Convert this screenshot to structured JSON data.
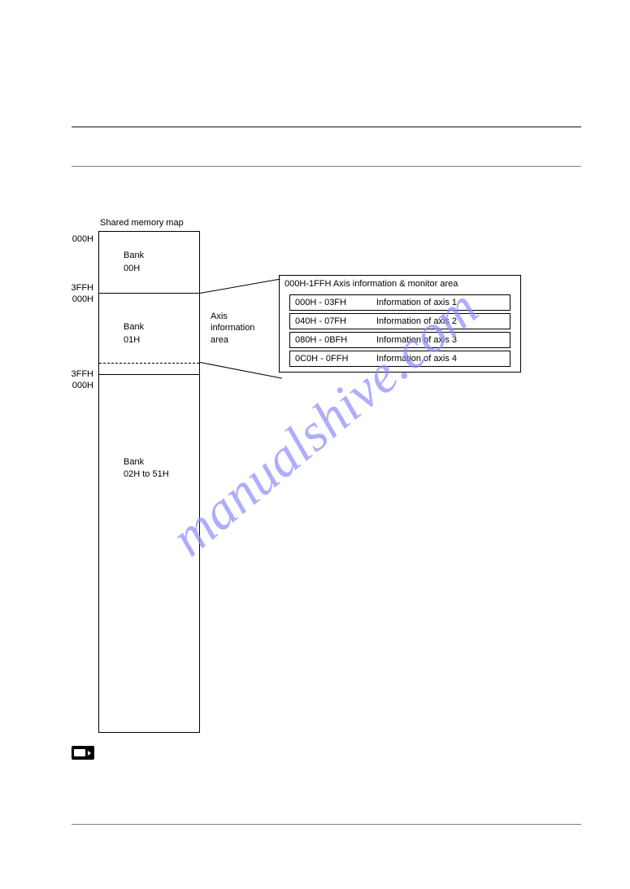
{
  "page": {
    "rule_color": "#808080",
    "watermark": "manualshive.com"
  },
  "diagram": {
    "title": "Shared memory map",
    "addresses": {
      "start": "000H",
      "end": "3FFH"
    },
    "axis_area_label_1": "Axis",
    "axis_area_label_2": "information",
    "axis_area_label_3": "area",
    "banks": [
      {
        "label_1": "Bank",
        "label_2": "00H"
      },
      {
        "label_1": "Bank",
        "label_2": "01H"
      },
      {
        "label_1": "Bank",
        "label_2": "02H to 51H"
      }
    ],
    "detail": {
      "title": "000H-1FFH Axis information & monitor area",
      "rows": [
        {
          "range": "000H - 03FH",
          "desc": "Information of axis 1"
        },
        {
          "range": "040H - 07FH",
          "desc": "Information of axis 2"
        },
        {
          "range": "080H - 0BFH",
          "desc": "Information of axis 3"
        },
        {
          "range": "0C0H - 0FFH",
          "desc": "Information of axis 4"
        }
      ]
    }
  },
  "colors": {
    "border": "#000000",
    "background": "#ffffff",
    "watermark": "#8d8dfb"
  }
}
